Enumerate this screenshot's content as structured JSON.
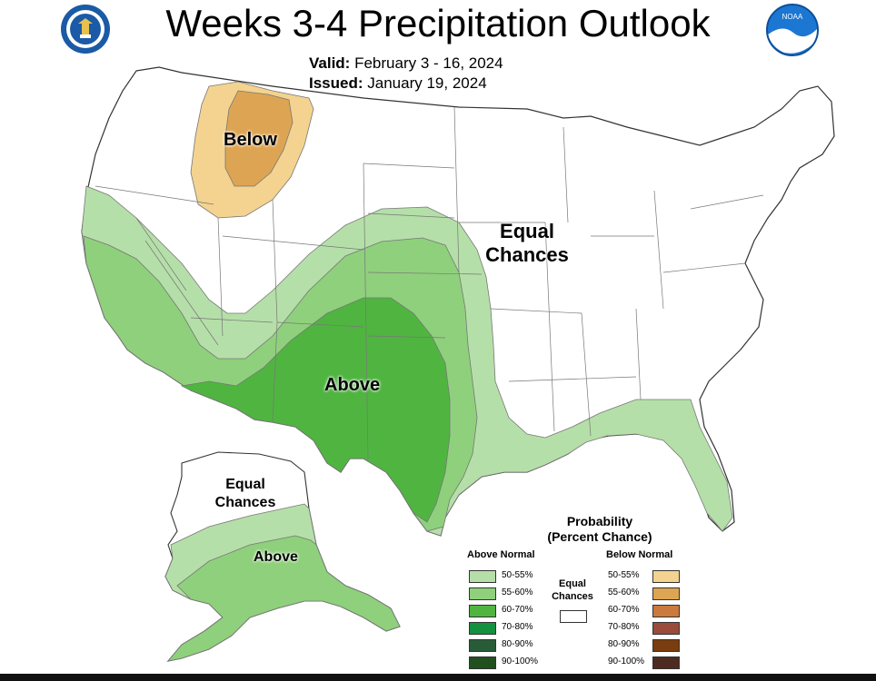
{
  "title": "Weeks 3-4 Precipitation Outlook",
  "valid_label": "Valid:",
  "valid_value": "February 3 - 16, 2024",
  "issued_label": "Issued:",
  "issued_value": "January 19, 2024",
  "logos": {
    "left": "doc-seal-icon",
    "right": "noaa-logo-icon"
  },
  "map_labels": {
    "below": "Below",
    "equal_line1": "Equal",
    "equal_line2": "Chances",
    "above": "Above",
    "ak_equal_line1": "Equal",
    "ak_equal_line2": "Chances",
    "ak_above": "Above"
  },
  "legend": {
    "title_line1": "Probability",
    "title_line2": "(Percent Chance)",
    "above_header": "Above Normal",
    "below_header": "Below Normal",
    "equal_line1": "Equal",
    "equal_line2": "Chances",
    "rows": [
      "50-55%",
      "55-60%",
      "60-70%",
      "70-80%",
      "80-90%",
      "90-100%"
    ],
    "above_colors": [
      "#b5dfa8",
      "#8fd07c",
      "#4fb540",
      "#13913e",
      "#285c38",
      "#21501f"
    ],
    "below_colors": [
      "#f3d38f",
      "#dda553",
      "#c97a3c",
      "#9a4b3c",
      "#7a3d0f",
      "#4e2a20"
    ]
  }
}
